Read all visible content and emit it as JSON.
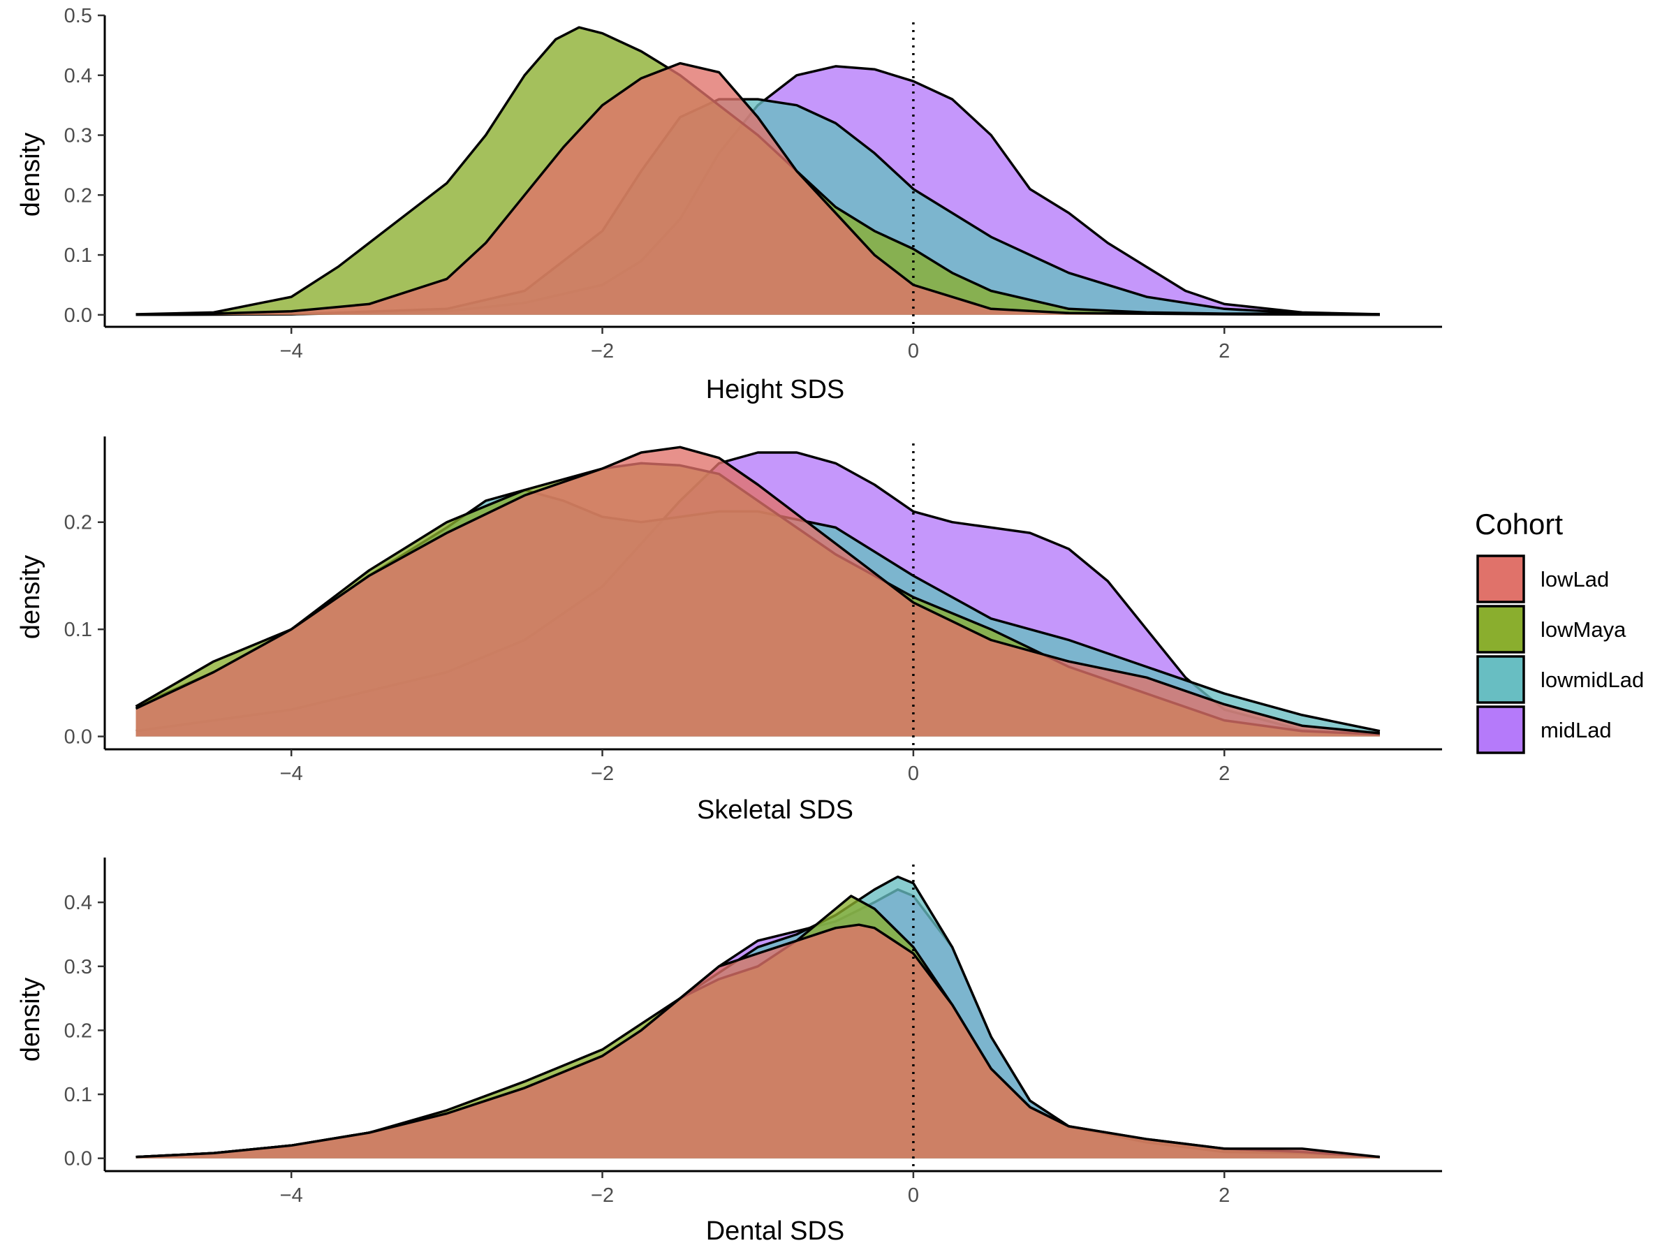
{
  "colors": {
    "lowLad": "#E0726A",
    "lowMaya": "#8AAE2E",
    "lowmidLad": "#68BEC2",
    "midLad": "#B57AFA",
    "outline": "#000000",
    "axis": "#000000",
    "tick_label": "#4d4d4d"
  },
  "legend": {
    "title": "Cohort",
    "placement": "right",
    "items": [
      {
        "key": "lowLad",
        "label": "lowLad"
      },
      {
        "key": "lowMaya",
        "label": "lowMaya"
      },
      {
        "key": "lowmidLad",
        "label": "lowmidLad"
      },
      {
        "key": "midLad",
        "label": "midLad"
      }
    ]
  },
  "chart_data": [
    {
      "type": "area",
      "xlabel": "Height SDS",
      "ylabel": "density",
      "xlim": [
        -5.2,
        3.4
      ],
      "ylim": [
        -0.02,
        0.5
      ],
      "xticks": [
        -4,
        -2,
        0,
        2
      ],
      "xtick_labels": [
        "−4",
        "−2",
        "0",
        "2"
      ],
      "yticks": [
        0.0,
        0.1,
        0.2,
        0.3,
        0.4,
        0.5
      ],
      "ytick_labels": [
        "0.0",
        "0.1",
        "0.2",
        "0.3",
        "0.4",
        "0.5"
      ],
      "reference_line_x": 0,
      "grid": false,
      "series": [
        {
          "name": "lowLad",
          "x": [
            -5,
            -4.5,
            -4,
            -3.5,
            -3,
            -2.75,
            -2.5,
            -2.25,
            -2,
            -1.75,
            -1.5,
            -1.25,
            -1,
            -0.75,
            -0.5,
            -0.25,
            0,
            0.5,
            1,
            2,
            3
          ],
          "y": [
            0,
            0.002,
            0.006,
            0.018,
            0.06,
            0.12,
            0.2,
            0.28,
            0.35,
            0.395,
            0.42,
            0.405,
            0.33,
            0.24,
            0.17,
            0.1,
            0.05,
            0.01,
            0.003,
            0.001,
            0
          ]
        },
        {
          "name": "lowMaya",
          "x": [
            -5,
            -4.5,
            -4,
            -3.7,
            -3.4,
            -3,
            -2.75,
            -2.5,
            -2.3,
            -2.15,
            -2,
            -1.75,
            -1.5,
            -1.25,
            -1,
            -0.75,
            -0.5,
            -0.25,
            0,
            0.25,
            0.5,
            1,
            1.5,
            2,
            2.5,
            3
          ],
          "y": [
            0.001,
            0.004,
            0.03,
            0.08,
            0.14,
            0.22,
            0.3,
            0.4,
            0.46,
            0.48,
            0.47,
            0.44,
            0.4,
            0.35,
            0.3,
            0.24,
            0.18,
            0.14,
            0.11,
            0.07,
            0.04,
            0.01,
            0.004,
            0.002,
            0.002,
            0.001
          ]
        },
        {
          "name": "lowmidLad",
          "x": [
            -5,
            -4,
            -3,
            -2.5,
            -2,
            -1.75,
            -1.5,
            -1.25,
            -1,
            -0.75,
            -0.5,
            -0.25,
            0,
            0.25,
            0.5,
            1,
            1.5,
            2,
            2.5,
            3
          ],
          "y": [
            0,
            0.001,
            0.01,
            0.04,
            0.14,
            0.24,
            0.33,
            0.36,
            0.36,
            0.35,
            0.32,
            0.27,
            0.21,
            0.17,
            0.13,
            0.07,
            0.03,
            0.01,
            0.003,
            0
          ]
        },
        {
          "name": "midLad",
          "x": [
            -5,
            -4,
            -3,
            -2.5,
            -2,
            -1.75,
            -1.5,
            -1.25,
            -1,
            -0.75,
            -0.5,
            -0.25,
            0,
            0.25,
            0.5,
            0.75,
            1,
            1.25,
            1.5,
            1.75,
            2,
            2.5,
            3
          ],
          "y": [
            0,
            0.001,
            0.006,
            0.02,
            0.05,
            0.09,
            0.16,
            0.27,
            0.35,
            0.4,
            0.415,
            0.41,
            0.39,
            0.36,
            0.3,
            0.21,
            0.17,
            0.12,
            0.08,
            0.04,
            0.018,
            0.004,
            0.001
          ]
        }
      ]
    },
    {
      "type": "area",
      "xlabel": "Skeletal SDS",
      "ylabel": "density",
      "xlim": [
        -5.2,
        3.4
      ],
      "ylim": [
        -0.012,
        0.28
      ],
      "xticks": [
        -4,
        -2,
        0,
        2
      ],
      "xtick_labels": [
        "−4",
        "−2",
        "0",
        "2"
      ],
      "yticks": [
        0.0,
        0.1,
        0.2
      ],
      "ytick_labels": [
        "0.0",
        "0.1",
        "0.2"
      ],
      "reference_line_x": 0,
      "grid": false,
      "series": [
        {
          "name": "lowLad",
          "x": [
            -5,
            -4.5,
            -4,
            -3.5,
            -3,
            -2.5,
            -2,
            -1.75,
            -1.5,
            -1.25,
            -1,
            -0.5,
            0,
            0.5,
            1,
            1.5,
            2,
            2.5,
            3
          ],
          "y": [
            0.026,
            0.06,
            0.1,
            0.15,
            0.19,
            0.225,
            0.25,
            0.265,
            0.27,
            0.26,
            0.235,
            0.18,
            0.125,
            0.09,
            0.07,
            0.055,
            0.03,
            0.01,
            0.003
          ]
        },
        {
          "name": "lowMaya",
          "x": [
            -5,
            -4.5,
            -4,
            -3.5,
            -3,
            -2.5,
            -2,
            -1.75,
            -1.5,
            -1.25,
            -1,
            -0.5,
            0,
            0.5,
            1,
            1.5,
            2,
            2.5,
            3
          ],
          "y": [
            0.028,
            0.07,
            0.1,
            0.155,
            0.2,
            0.23,
            0.25,
            0.255,
            0.253,
            0.245,
            0.22,
            0.17,
            0.13,
            0.1,
            0.065,
            0.04,
            0.015,
            0.005,
            0.002
          ]
        },
        {
          "name": "lowmidLad",
          "x": [
            -5,
            -4.5,
            -4,
            -3.5,
            -3,
            -2.75,
            -2.5,
            -2.25,
            -2,
            -1.75,
            -1.5,
            -1.25,
            -1,
            -0.5,
            0,
            0.5,
            1,
            1.5,
            2,
            2.5,
            3
          ],
          "y": [
            0.028,
            0.06,
            0.1,
            0.15,
            0.195,
            0.22,
            0.23,
            0.22,
            0.205,
            0.2,
            0.205,
            0.21,
            0.21,
            0.195,
            0.15,
            0.11,
            0.09,
            0.065,
            0.04,
            0.02,
            0.005
          ]
        },
        {
          "name": "midLad",
          "x": [
            -5,
            -4,
            -3,
            -2.5,
            -2,
            -1.5,
            -1.25,
            -1,
            -0.75,
            -0.5,
            -0.25,
            0,
            0.25,
            0.5,
            0.75,
            1,
            1.25,
            1.5,
            1.75,
            2,
            2.5,
            3
          ],
          "y": [
            0.005,
            0.025,
            0.06,
            0.09,
            0.14,
            0.22,
            0.255,
            0.265,
            0.265,
            0.255,
            0.235,
            0.21,
            0.2,
            0.195,
            0.19,
            0.175,
            0.145,
            0.1,
            0.055,
            0.025,
            0.006,
            0.002
          ]
        }
      ]
    },
    {
      "type": "area",
      "xlabel": "Dental SDS",
      "ylabel": "density",
      "xlim": [
        -5.2,
        3.4
      ],
      "ylim": [
        -0.02,
        0.47
      ],
      "xticks": [
        -4,
        -2,
        0,
        2
      ],
      "xtick_labels": [
        "−4",
        "−2",
        "0",
        "2"
      ],
      "yticks": [
        0.0,
        0.1,
        0.2,
        0.3,
        0.4
      ],
      "ytick_labels": [
        "0.0",
        "0.1",
        "0.2",
        "0.3",
        "0.4"
      ],
      "reference_line_x": 0,
      "grid": false,
      "series": [
        {
          "name": "lowLad",
          "x": [
            -5,
            -4.5,
            -4,
            -3.5,
            -3,
            -2.5,
            -2,
            -1.75,
            -1.5,
            -1.25,
            -1,
            -0.75,
            -0.5,
            -0.35,
            -0.25,
            0,
            0.25,
            0.5,
            0.75,
            1,
            1.5,
            2,
            2.5,
            3
          ],
          "y": [
            0.002,
            0.008,
            0.02,
            0.04,
            0.07,
            0.11,
            0.16,
            0.2,
            0.25,
            0.3,
            0.32,
            0.34,
            0.36,
            0.365,
            0.36,
            0.32,
            0.24,
            0.14,
            0.08,
            0.05,
            0.03,
            0.015,
            0.015,
            0.002
          ]
        },
        {
          "name": "lowMaya",
          "x": [
            -5,
            -4.5,
            -4,
            -3.5,
            -3,
            -2.5,
            -2,
            -1.75,
            -1.5,
            -1.25,
            -1,
            -0.75,
            -0.5,
            -0.4,
            -0.25,
            0,
            0.25,
            0.5,
            0.75,
            1,
            1.5,
            2,
            2.5,
            3
          ],
          "y": [
            0.002,
            0.008,
            0.02,
            0.04,
            0.075,
            0.12,
            0.17,
            0.21,
            0.25,
            0.28,
            0.3,
            0.34,
            0.39,
            0.41,
            0.39,
            0.33,
            0.24,
            0.14,
            0.08,
            0.05,
            0.03,
            0.015,
            0.01,
            0.002
          ]
        },
        {
          "name": "lowmidLad",
          "x": [
            -5,
            -4.5,
            -4,
            -3.5,
            -3,
            -2.5,
            -2,
            -1.75,
            -1.5,
            -1.25,
            -1,
            -0.75,
            -0.5,
            -0.25,
            -0.1,
            0,
            0.25,
            0.5,
            0.75,
            1,
            1.5,
            2,
            2.5,
            3
          ],
          "y": [
            0.002,
            0.008,
            0.02,
            0.04,
            0.07,
            0.11,
            0.16,
            0.2,
            0.25,
            0.29,
            0.33,
            0.35,
            0.38,
            0.42,
            0.44,
            0.43,
            0.33,
            0.19,
            0.09,
            0.05,
            0.025,
            0.01,
            0.008,
            0.002
          ]
        },
        {
          "name": "midLad",
          "x": [
            -5,
            -4.5,
            -4,
            -3.5,
            -3,
            -2.5,
            -2,
            -1.75,
            -1.5,
            -1.25,
            -1,
            -0.75,
            -0.5,
            -0.25,
            -0.1,
            0,
            0.25,
            0.5,
            0.75,
            1,
            1.5,
            2,
            2.5,
            3
          ],
          "y": [
            0.002,
            0.008,
            0.02,
            0.04,
            0.07,
            0.11,
            0.16,
            0.2,
            0.25,
            0.3,
            0.34,
            0.355,
            0.37,
            0.4,
            0.42,
            0.41,
            0.33,
            0.19,
            0.09,
            0.05,
            0.025,
            0.01,
            0.008,
            0.002
          ]
        }
      ]
    }
  ]
}
